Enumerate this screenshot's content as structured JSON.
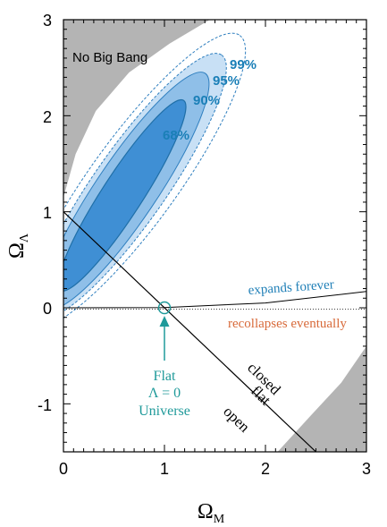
{
  "chart_data": {
    "type": "contour",
    "xlabel_main": "Ω",
    "xlabel_sub": "M",
    "ylabel_main": "Ω",
    "ylabel_sub": "Λ",
    "xlim": [
      0,
      3
    ],
    "ylim": [
      -1.5,
      3
    ],
    "xticks": [
      0,
      1,
      2,
      3
    ],
    "xtick_labels": [
      "0",
      "1",
      "2",
      "3"
    ],
    "yticks": [
      -1,
      0,
      1,
      2,
      3
    ],
    "ytick_labels": [
      "-1",
      "0",
      "1",
      "2",
      "3"
    ],
    "colors": {
      "no_big_bang": "#b4b4b4",
      "c68": "#3f8fd4",
      "c90": "#8fbfe8",
      "c95": "#c8e0f5",
      "contour_line": "#2f7fbf",
      "expands": "#1f7fb7",
      "recollapses": "#d86a3a",
      "flat_note": "#1f9a9a"
    },
    "regions": {
      "no_big_bang_label": "No Big Bang"
    },
    "confidence_contours": [
      {
        "label": "68%",
        "cx": 0.58,
        "cy": 1.17,
        "a": 1.12,
        "b": 0.2,
        "angle_deg": 57
      },
      {
        "label": "90%",
        "cx": 0.62,
        "cy": 1.22,
        "a": 1.4,
        "b": 0.3,
        "angle_deg": 56
      },
      {
        "label": "95%",
        "cx": 0.66,
        "cy": 1.27,
        "a": 1.58,
        "b": 0.36,
        "angle_deg": 55
      },
      {
        "label": "99%",
        "cx": 0.7,
        "cy": 1.32,
        "a": 1.78,
        "b": 0.43,
        "angle_deg": 54
      }
    ],
    "flat_line": {
      "x": [
        0,
        2.5
      ],
      "y": [
        1,
        -1.5
      ]
    },
    "expansion_boundary": {
      "x": [
        0,
        1,
        2,
        3
      ],
      "y": [
        0,
        0.003,
        0.05,
        0.17
      ]
    },
    "annotations": {
      "expands_forever": "expands forever",
      "recollapses_eventually": "recollapses eventually",
      "flat_universe_line1": "Flat",
      "flat_universe_line2": "Λ = 0",
      "flat_universe_line3": "Universe",
      "closed": "closed",
      "flat": "flat",
      "open": "open"
    },
    "flat_universe_point": {
      "x": 1,
      "y": 0
    }
  }
}
